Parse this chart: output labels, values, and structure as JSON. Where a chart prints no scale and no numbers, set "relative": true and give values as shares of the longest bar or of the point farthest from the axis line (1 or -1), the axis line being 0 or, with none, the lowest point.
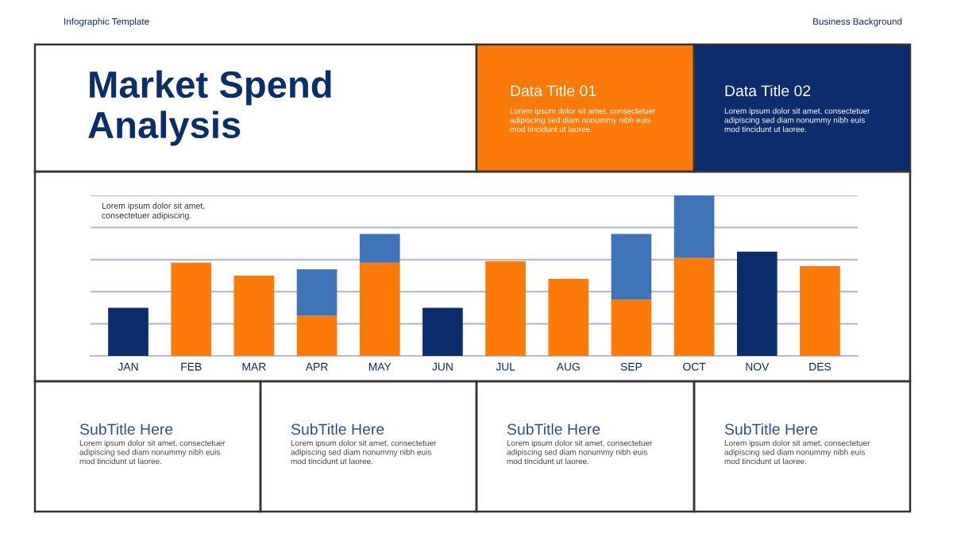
{
  "chart_data": {
    "type": "bar",
    "title": "Market Spend\nAnalysis",
    "categories": [
      "JAN",
      "FEB",
      "MAR",
      "APR",
      "MAY",
      "JUN",
      "JUL",
      "AUG",
      "SEP",
      "OCT",
      "NOV",
      "DES"
    ],
    "stacked": true,
    "relative": true,
    "grid": "y",
    "legend": false,
    "series": [
      {
        "colors": [
          "#0b2d6b",
          "#fb7a0a",
          "#fb7a0a",
          "#fb7a0a",
          "#fb7a0a",
          "#0b2d6b",
          "#fb7a0a",
          "#fb7a0a",
          "#fb7a0a",
          "#fb7a0a",
          "#0b2d6b",
          "#fb7a0a"
        ],
        "values": [
          0.3,
          0.58,
          0.5,
          0.25,
          0.58,
          0.3,
          0.59,
          0.48,
          0.35,
          0.61,
          0.65,
          0.56
        ]
      },
      {
        "color": "#3f74b8",
        "values": [
          null,
          null,
          null,
          0.29,
          0.18,
          null,
          null,
          null,
          0.41,
          0.39,
          null,
          null
        ]
      }
    ],
    "annotations": [
      "Infographic Template",
      "Business Background",
      "Data Title 01",
      "Lorem ipsum dolor sit amet, consectetuer\nadipiscing sed diam nonummy nibh euis\nmod tincidunt ut laoree.",
      "Data Title 02",
      "Lorem ipsum dolor sit amet, consectetuer\nadipiscing sed diam nonummy nibh euis\nmod tincidunt ut laoree.",
      "Lorem ipsum dolor sit amet,\nconsectetuer adipiscing.",
      "SubTitle Here",
      "Lorem ipsum dolor sit amet, consectetuer\nadipiscing sed diam nonummy nibh euis\nmod tincidunt ut laoree.",
      "SubTitle Here",
      "Lorem ipsum dolor sit amet, consectetuer\nadipiscing sed diam nonummy nibh euis\nmod tincidunt ut laoree.",
      "SubTitle Here",
      "Lorem ipsum dolor sit amet, consectetuer\nadipiscing sed diam nonummy nibh euis\nmod tincidunt ut laoree.",
      "SubTitle Here",
      "Lorem ipsum dolor sit amet, consectetuer\nadipiscing sed diam nonummy nibh euis\nmod tincidunt ut laoree."
    ]
  }
}
